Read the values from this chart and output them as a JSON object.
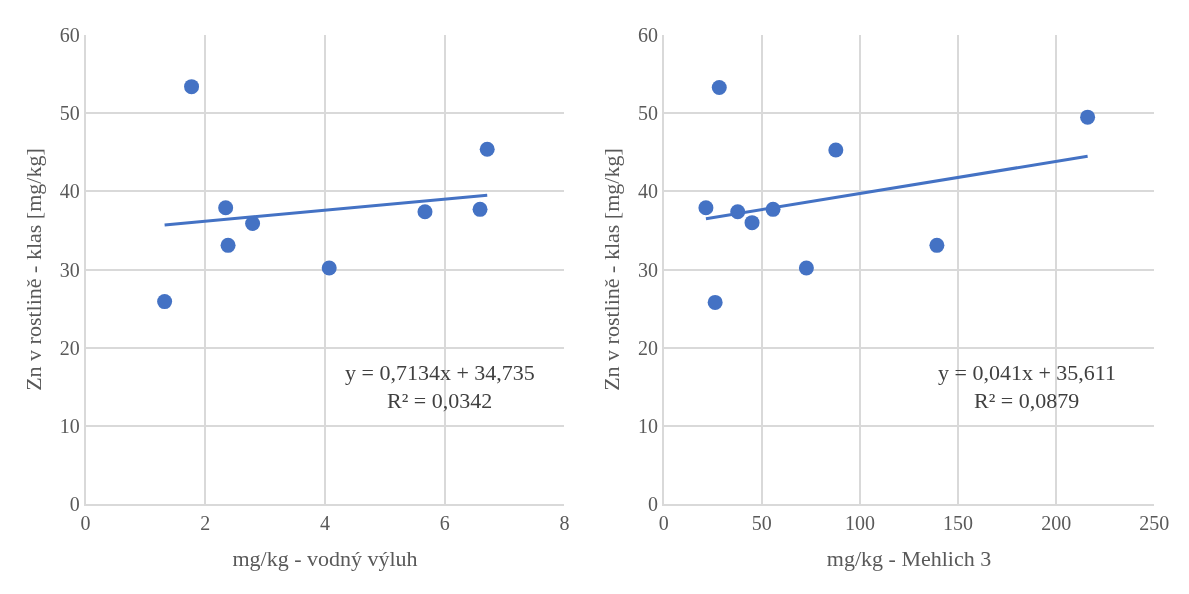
{
  "chart_data": [
    {
      "type": "scatter",
      "xlabel": "mg/kg - vodný výluh",
      "ylabel": "Zn v rostlině - klas [mg/kg]",
      "xlim": [
        0,
        8
      ],
      "xticks": [
        0,
        2,
        4,
        6,
        8
      ],
      "ylim": [
        0,
        60
      ],
      "yticks": [
        0,
        10,
        20,
        30,
        40,
        50,
        60
      ],
      "grid": true,
      "marker": "circle",
      "annotations": [
        "y = 0,7134x + 34,735",
        "R² = 0,0342"
      ],
      "series": [
        {
          "color": "#4472c4",
          "x": [
            1.32,
            1.77,
            2.34,
            2.38,
            2.79,
            4.07,
            5.67,
            6.59,
            6.71
          ],
          "values": [
            25.9,
            53.4,
            37.9,
            33.1,
            35.9,
            30.2,
            37.4,
            37.7,
            45.4
          ]
        },
        {
          "type": "line",
          "marker": "none",
          "color": "#4472c4",
          "x": [
            1.32,
            6.71
          ],
          "values": [
            35.7,
            39.5
          ]
        }
      ]
    },
    {
      "type": "scatter",
      "xlabel": "mg/kg - Mehlich 3",
      "ylabel": "Zn v rostlině - klas [mg/kg]",
      "xlim": [
        0,
        250
      ],
      "xticks": [
        0,
        50,
        100,
        150,
        200,
        250
      ],
      "ylim": [
        0,
        60
      ],
      "yticks": [
        0,
        10,
        20,
        30,
        40,
        50,
        60
      ],
      "grid": true,
      "marker": "circle",
      "annotations": [
        "y = 0,041x + 35,611",
        "R² = 0,0879"
      ],
      "series": [
        {
          "color": "#4472c4",
          "x": [
            21.5,
            28.3,
            26.2,
            37.7,
            45,
            55.7,
            72.7,
            87.7,
            139.2,
            216
          ],
          "values": [
            37.9,
            53.3,
            25.8,
            37.4,
            36.0,
            37.7,
            30.2,
            45.3,
            33.1,
            49.5
          ]
        },
        {
          "type": "line",
          "marker": "none",
          "color": "#4472c4",
          "x": [
            21.5,
            216
          ],
          "values": [
            36.5,
            44.5
          ]
        }
      ]
    }
  ]
}
